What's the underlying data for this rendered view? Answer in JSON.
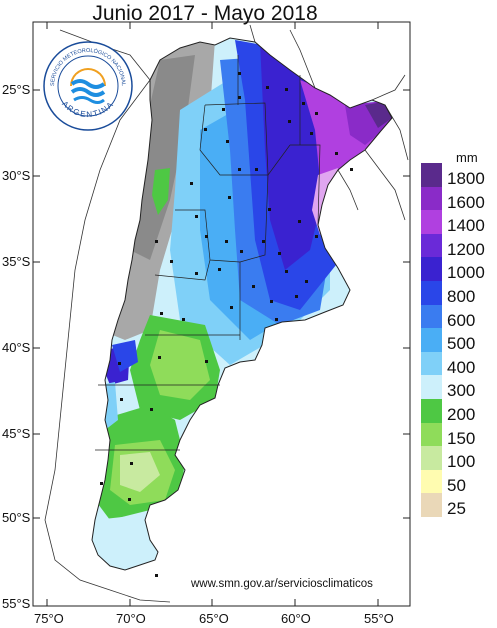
{
  "title": "Junio 2017 - Mayo 2018",
  "unit": "mm",
  "credit": "www.smn.gov.ar/serviciosclimaticos",
  "logo": {
    "arc_text_top": "SERVICIO METEOROLÓGICO NACIONAL",
    "arc_text_bottom": "ARGENTINA",
    "icon": "smn-logo-icon"
  },
  "lat_labels": [
    "25°S",
    "30°S",
    "35°S",
    "40°S",
    "45°S",
    "50°S",
    "55°S"
  ],
  "lon_labels": [
    "75°O",
    "70°O",
    "65°O",
    "60°O",
    "55°O"
  ],
  "legend": [
    {
      "label": "1800",
      "color": "#5a2a8c"
    },
    {
      "label": "1600",
      "color": "#8a2bc8"
    },
    {
      "label": "1400",
      "color": "#b040e0"
    },
    {
      "label": "1200",
      "color": "#6a2ad8"
    },
    {
      "label": "1000",
      "color": "#3a22d0"
    },
    {
      "label": "800",
      "color": "#2a46e8"
    },
    {
      "label": "600",
      "color": "#3a7cf0"
    },
    {
      "label": "500",
      "color": "#4aaef5"
    },
    {
      "label": "400",
      "color": "#7fd0f8"
    },
    {
      "label": "300",
      "color": "#cdf0fb"
    },
    {
      "label": "200",
      "color": "#4ec844"
    },
    {
      "label": "150",
      "color": "#8fdc5a"
    },
    {
      "label": "100",
      "color": "#c8eaa0"
    },
    {
      "label": "50",
      "color": "#fffcb0"
    },
    {
      "label": "25",
      "color": "#ead8b8"
    }
  ]
}
